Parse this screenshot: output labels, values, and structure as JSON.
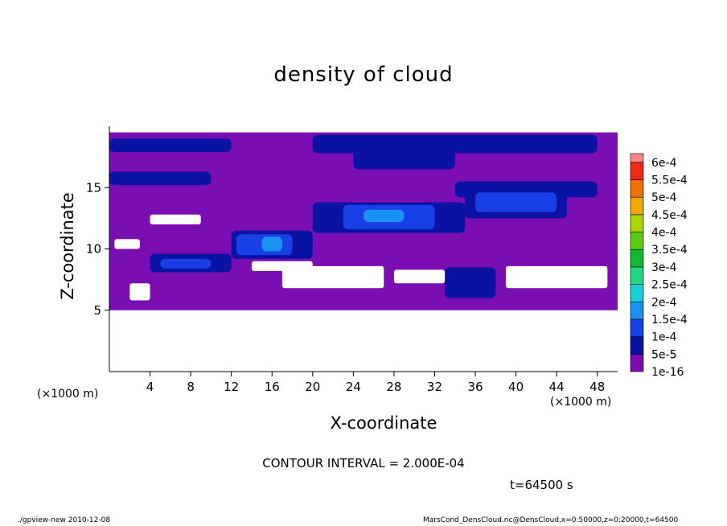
{
  "chart_data": {
    "type": "heatmap",
    "title": "density of cloud",
    "xlabel": "X-coordinate",
    "ylabel": "Z-coordinate",
    "x_unit": "(×1000 m)",
    "xlim": [
      0,
      50
    ],
    "ylim": [
      0,
      20
    ],
    "x_ticks": [
      "4",
      "8",
      "12",
      "16",
      "20",
      "24",
      "28",
      "32",
      "36",
      "40",
      "44",
      "48"
    ],
    "y_ticks": [
      "5",
      "10",
      "15"
    ],
    "colorbar_labels": [
      "1e-16",
      "5e-5",
      "1e-4",
      "1.5e-4",
      "2e-4",
      "2.5e-4",
      "3e-4",
      "3.5e-4",
      "4e-4",
      "4.5e-4",
      "5e-4",
      "5.5e-4",
      "6e-4"
    ],
    "colorbar_colors": [
      "#7a0eb3",
      "#0a12a4",
      "#1840e6",
      "#1a90f0",
      "#16d2d8",
      "#22d882",
      "#12b830",
      "#58cc10",
      "#a8d800",
      "#f0a800",
      "#f07000",
      "#f02a10",
      "#f88888"
    ],
    "regions": [
      {
        "x0": 0,
        "x1": 50,
        "z0": 5,
        "z1": 19.5,
        "level": 0
      },
      {
        "x0": 0,
        "x1": 12,
        "z0": 17.9,
        "z1": 19,
        "level": 1
      },
      {
        "x0": 20,
        "x1": 48,
        "z0": 17.8,
        "z1": 19.3,
        "level": 1
      },
      {
        "x0": 24,
        "x1": 34,
        "z0": 16.5,
        "z1": 18,
        "level": 1
      },
      {
        "x0": 0,
        "x1": 10,
        "z0": 15.2,
        "z1": 16.3,
        "level": 1
      },
      {
        "x0": 34,
        "x1": 48,
        "z0": 14.2,
        "z1": 15.5,
        "level": 1
      },
      {
        "x0": 4,
        "x1": 12,
        "z0": 8.1,
        "z1": 9.6,
        "level": 1
      },
      {
        "x0": 12,
        "x1": 20,
        "z0": 9.2,
        "z1": 11.5,
        "level": 1
      },
      {
        "x0": 20,
        "x1": 35,
        "z0": 11.3,
        "z1": 13.8,
        "level": 1
      },
      {
        "x0": 35,
        "x1": 45,
        "z0": 12.5,
        "z1": 14.9,
        "level": 1
      },
      {
        "x0": 33,
        "x1": 38,
        "z0": 6,
        "z1": 8.5,
        "level": 1
      },
      {
        "x0": 5,
        "x1": 10,
        "z0": 8.4,
        "z1": 9.2,
        "level": 2
      },
      {
        "x0": 12.5,
        "x1": 18,
        "z0": 9.5,
        "z1": 11.2,
        "level": 2
      },
      {
        "x0": 23,
        "x1": 32,
        "z0": 11.6,
        "z1": 13.6,
        "level": 2
      },
      {
        "x0": 36,
        "x1": 44,
        "z0": 13,
        "z1": 14.6,
        "level": 2
      },
      {
        "x0": 15,
        "x1": 17,
        "z0": 9.8,
        "z1": 11,
        "level": 3
      },
      {
        "x0": 25,
        "x1": 29,
        "z0": 12.2,
        "z1": 13.2,
        "level": 3
      }
    ],
    "holes": [
      {
        "x0": 4,
        "x1": 9,
        "z0": 12,
        "z1": 12.8
      },
      {
        "x0": 0.5,
        "x1": 3,
        "z0": 10,
        "z1": 10.8
      },
      {
        "x0": 14,
        "x1": 20,
        "z0": 8.2,
        "z1": 9
      },
      {
        "x0": 17,
        "x1": 27,
        "z0": 6.8,
        "z1": 8.6
      },
      {
        "x0": 2,
        "x1": 4,
        "z0": 5.8,
        "z1": 7.2
      },
      {
        "x0": 39,
        "x1": 49,
        "z0": 6.8,
        "z1": 8.6
      },
      {
        "x0": 28,
        "x1": 33,
        "z0": 7.2,
        "z1": 8.3
      }
    ],
    "contour_interval": "CONTOUR INTERVAL = 2.000E-04",
    "time": "t=64500 s"
  },
  "footer": {
    "left": "./gpview-new  2010-12-08",
    "right": "MarsCond_DensCloud.nc@DensCloud,x=0:50000,z=0:20000,t=64500"
  }
}
